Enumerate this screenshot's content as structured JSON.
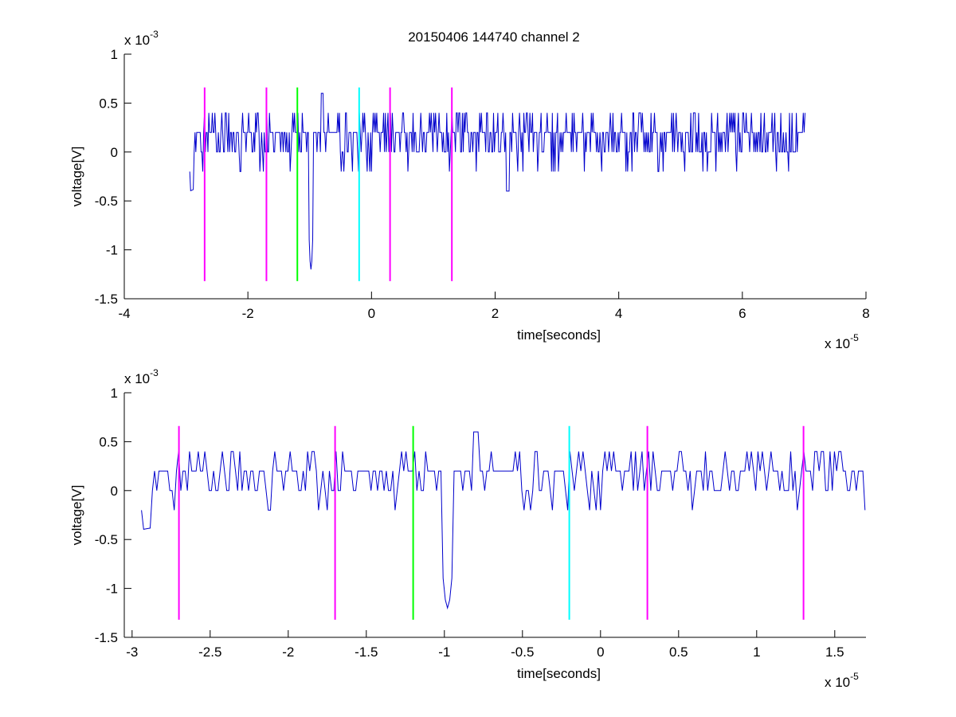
{
  "figure": {
    "title": "20150406 144740 channel 2"
  },
  "chart_data": [
    {
      "type": "line",
      "title": "20150406 144740 channel 2",
      "xlabel": "time[seconds]",
      "ylabel": "voltage[V]",
      "x_multiplier": "x 10",
      "x_exponent": "-5",
      "y_multiplier": "x 10",
      "y_exponent": "-3",
      "xlim": [
        -4e-05,
        8e-05
      ],
      "ylim": [
        -0.0015,
        0.001
      ],
      "x_ticks": [
        -4e-05,
        -2e-05,
        0,
        2e-05,
        4e-05,
        6e-05,
        8e-05
      ],
      "x_tick_labels": [
        "-4",
        "-2",
        "0",
        "2",
        "4",
        "6",
        "8"
      ],
      "y_ticks": [
        0.001,
        0.0005,
        0,
        -0.0005,
        -0.001,
        -0.0015
      ],
      "y_tick_labels": [
        "1",
        "0.5",
        "0",
        "-0.5",
        "-1",
        "-1.5"
      ],
      "grid": false,
      "signal": {
        "color": "#0000cc",
        "x_start": -2.94e-05,
        "x_end": 7.02e-05
      },
      "markers": [
        {
          "x": -2.7e-05,
          "color": "#ff00ff"
        },
        {
          "x": -1.7e-05,
          "color": "#ff00ff"
        },
        {
          "x": -1.2e-05,
          "color": "#00ff00"
        },
        {
          "x": -2e-06,
          "color": "#00ffff"
        },
        {
          "x": 3e-06,
          "color": "#ff00ff"
        },
        {
          "x": 1.3e-05,
          "color": "#ff00ff"
        }
      ],
      "marker_y_range": [
        -0.00132,
        0.00066
      ]
    },
    {
      "type": "line",
      "title": "",
      "xlabel": "time[seconds]",
      "ylabel": "voltage[V]",
      "x_multiplier": "x 10",
      "x_exponent": "-5",
      "y_multiplier": "x 10",
      "y_exponent": "-3",
      "xlim": [
        -3.05e-05,
        1.7e-05
      ],
      "ylim": [
        -0.0015,
        0.001
      ],
      "x_ticks": [
        -3e-05,
        -2.5e-05,
        -2e-05,
        -1.5e-05,
        -1e-05,
        -5e-06,
        0,
        5e-06,
        1e-05,
        1.5e-05
      ],
      "x_tick_labels": [
        "-3",
        "-2.5",
        "-2",
        "-1.5",
        "-1",
        "-0.5",
        "0",
        "0.5",
        "1",
        "1.5"
      ],
      "y_ticks": [
        0.001,
        0.0005,
        0,
        -0.0005,
        -0.001,
        -0.0015
      ],
      "y_tick_labels": [
        "1",
        "0.5",
        "0",
        "-0.5",
        "-1",
        "-1.5"
      ],
      "grid": false,
      "signal": {
        "color": "#0000cc",
        "x_start": -2.94e-05,
        "x_end": 1.7e-05
      },
      "markers": [
        {
          "x": -2.7e-05,
          "color": "#ff00ff"
        },
        {
          "x": -1.7e-05,
          "color": "#ff00ff"
        },
        {
          "x": -1.2e-05,
          "color": "#00ff00"
        },
        {
          "x": -2e-06,
          "color": "#00ffff"
        },
        {
          "x": 3e-06,
          "color": "#ff00ff"
        },
        {
          "x": 1.3e-05,
          "color": "#ff00ff"
        }
      ],
      "marker_y_range": [
        -0.00132,
        0.00066
      ]
    }
  ]
}
